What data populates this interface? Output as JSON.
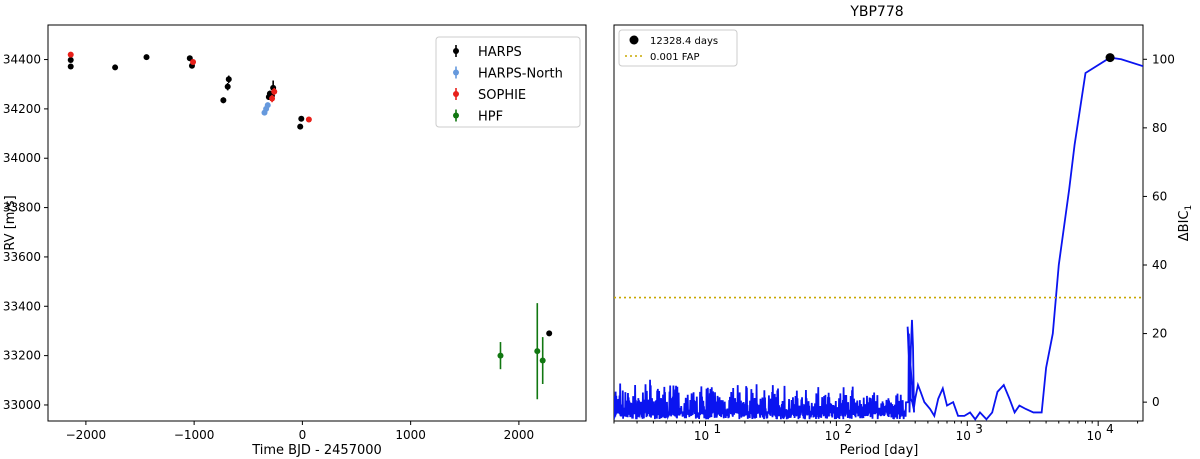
{
  "chart_data": [
    {
      "type": "scatter",
      "title": "",
      "xlabel": "Time BJD - 2457000",
      "ylabel": "RV [m/s]",
      "xlim": [
        -2350,
        2620
      ],
      "ylim": [
        32935,
        34540
      ],
      "xticks": [
        -2000,
        -1000,
        0,
        1000,
        2000
      ],
      "xtick_labels": [
        "−2000",
        "−1000",
        "0",
        "1000",
        "2000"
      ],
      "yticks": [
        33000,
        33200,
        33400,
        33600,
        33800,
        34000,
        34200,
        34400
      ],
      "ytick_labels": [
        "33000",
        "33200",
        "33400",
        "33600",
        "33800",
        "34000",
        "34200",
        "34400"
      ],
      "legend_position": "top-right",
      "series": [
        {
          "name": "HARPS",
          "color": "#000000",
          "points": [
            {
              "x": -2140,
              "y": 34372,
              "err": 8
            },
            {
              "x": -2140,
              "y": 34398,
              "err": 8
            },
            {
              "x": -1730,
              "y": 34368,
              "err": 5
            },
            {
              "x": -1440,
              "y": 34410,
              "err": 5
            },
            {
              "x": -1040,
              "y": 34405,
              "err": 5
            },
            {
              "x": -1020,
              "y": 34375,
              "err": 8
            },
            {
              "x": -730,
              "y": 34235,
              "err": 12
            },
            {
              "x": -690,
              "y": 34290,
              "err": 15
            },
            {
              "x": -680,
              "y": 34320,
              "err": 15
            },
            {
              "x": -310,
              "y": 34248,
              "err": 12
            },
            {
              "x": -300,
              "y": 34262,
              "err": 12
            },
            {
              "x": -280,
              "y": 34255,
              "err": 15
            },
            {
              "x": -270,
              "y": 34285,
              "err": 30
            },
            {
              "x": -20,
              "y": 34128,
              "err": 5
            },
            {
              "x": -10,
              "y": 34160,
              "err": 5
            },
            {
              "x": 2280,
              "y": 33290,
              "err": 5
            }
          ]
        },
        {
          "name": "HARPS-North",
          "color": "#6699dd",
          "points": [
            {
              "x": -350,
              "y": 34185,
              "err": 10
            },
            {
              "x": -335,
              "y": 34200,
              "err": 10
            },
            {
              "x": -320,
              "y": 34215,
              "err": 10
            }
          ]
        },
        {
          "name": "SOPHIE",
          "color": "#e8201a",
          "points": [
            {
              "x": -2140,
              "y": 34420,
              "err": 8
            },
            {
              "x": -1010,
              "y": 34390,
              "err": 8
            },
            {
              "x": -280,
              "y": 34242,
              "err": 15
            },
            {
              "x": -260,
              "y": 34270,
              "err": 15
            },
            {
              "x": 60,
              "y": 34157,
              "err": 5
            }
          ]
        },
        {
          "name": "HPF",
          "color": "#117711",
          "points": [
            {
              "x": 1830,
              "y": 33200,
              "err": 55
            },
            {
              "x": 2170,
              "y": 33218,
              "err": 195
            },
            {
              "x": 2220,
              "y": 33180,
              "err": 95
            }
          ]
        }
      ]
    },
    {
      "type": "line",
      "title": "YBP778",
      "xlabel": "Period [day]",
      "ylabel": "ΔBIC",
      "ylabel_subscript": "1",
      "xscale": "log",
      "xlim": [
        2,
        22000
      ],
      "ylim": [
        -5.5,
        110
      ],
      "xticks": [
        10,
        100,
        1000,
        10000
      ],
      "xtick_labels": [
        "10",
        "10",
        "10",
        "10"
      ],
      "xtick_exponents": [
        "1",
        "2",
        "3",
        "4"
      ],
      "yticks": [
        0,
        20,
        40,
        60,
        80,
        100
      ],
      "ytick_labels": [
        "0",
        "20",
        "40",
        "60",
        "80",
        "100"
      ],
      "fap_level": 30.5,
      "peak": {
        "x": 12328.4,
        "y": 100.5
      },
      "legend_position": "top-left",
      "legend": [
        {
          "label": "12328.4 days",
          "marker": "circle",
          "color": "#000000"
        },
        {
          "label": "0.001 FAP",
          "marker": "dotted-line",
          "color": "#c8a800"
        }
      ],
      "line_color": "#0a14f0",
      "smooth_curve": [
        [
          350,
          22
        ],
        [
          360,
          10
        ],
        [
          370,
          1
        ],
        [
          380,
          0
        ],
        [
          390,
          -2
        ],
        [
          400,
          1
        ],
        [
          420,
          5
        ],
        [
          440,
          3
        ],
        [
          470,
          0
        ],
        [
          520,
          -2
        ],
        [
          560,
          -4
        ],
        [
          600,
          1
        ],
        [
          650,
          4
        ],
        [
          700,
          -1
        ],
        [
          780,
          0
        ],
        [
          850,
          -4
        ],
        [
          950,
          -4
        ],
        [
          1050,
          -3
        ],
        [
          1150,
          -5
        ],
        [
          1250,
          -3
        ],
        [
          1400,
          -5
        ],
        [
          1550,
          -3
        ],
        [
          1700,
          3
        ],
        [
          1900,
          5
        ],
        [
          2100,
          1
        ],
        [
          2300,
          -3
        ],
        [
          2500,
          -1
        ],
        [
          2800,
          -2
        ],
        [
          3200,
          -3
        ],
        [
          3700,
          -3
        ],
        [
          4000,
          10
        ],
        [
          4500,
          20
        ],
        [
          5000,
          40
        ],
        [
          6000,
          62
        ],
        [
          6600,
          75
        ],
        [
          8000,
          96
        ],
        [
          12328.4,
          100.5
        ],
        [
          15000,
          100
        ],
        [
          22000,
          98
        ]
      ]
    }
  ]
}
